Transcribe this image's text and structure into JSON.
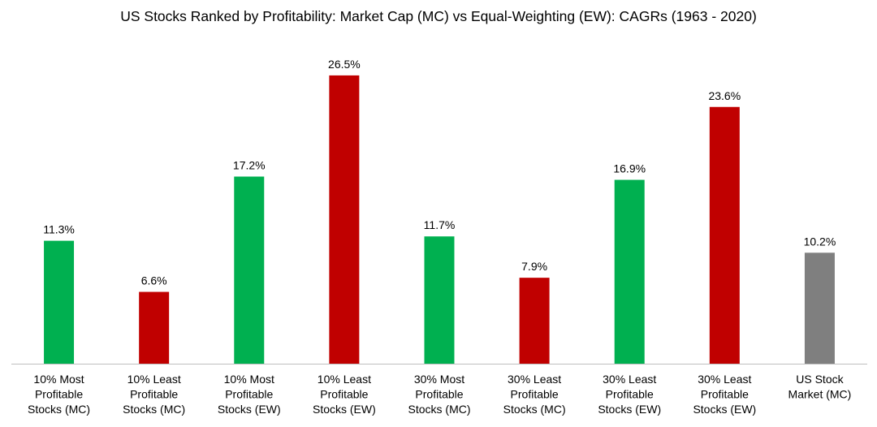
{
  "chart_data": {
    "type": "bar",
    "title": "US Stocks Ranked by Profitability: Market Cap (MC) vs Equal-Weighting (EW): CAGRs (1963 - 2020)",
    "xlabel": "",
    "ylabel": "",
    "ylim": [
      0,
      28
    ],
    "grid": false,
    "categories": [
      [
        "10% Most",
        "Profitable",
        "Stocks (MC)"
      ],
      [
        "10% Least",
        "Profitable",
        "Stocks (MC)"
      ],
      [
        "10% Most",
        "Profitable",
        "Stocks (EW)"
      ],
      [
        "10% Least",
        "Profitable",
        "Stocks (EW)"
      ],
      [
        "30% Most",
        "Profitable",
        "Stocks (MC)"
      ],
      [
        "30% Least",
        "Profitable",
        "Stocks (MC)"
      ],
      [
        "30% Least",
        "Profitable",
        "Stocks (EW)"
      ],
      [
        "30% Least",
        "Profitable",
        "Stocks (EW)"
      ],
      [
        "US Stock",
        "Market (MC)"
      ]
    ],
    "values": [
      11.3,
      6.6,
      17.2,
      26.5,
      11.7,
      7.9,
      16.9,
      23.6,
      10.2
    ],
    "data_labels": [
      "11.3%",
      "6.6%",
      "17.2%",
      "26.5%",
      "11.7%",
      "7.9%",
      "16.9%",
      "23.6%",
      "10.2%"
    ],
    "colors": [
      "#00B050",
      "#C00000",
      "#00B050",
      "#C00000",
      "#00B050",
      "#C00000",
      "#00B050",
      "#C00000",
      "#7F7F7F"
    ]
  }
}
